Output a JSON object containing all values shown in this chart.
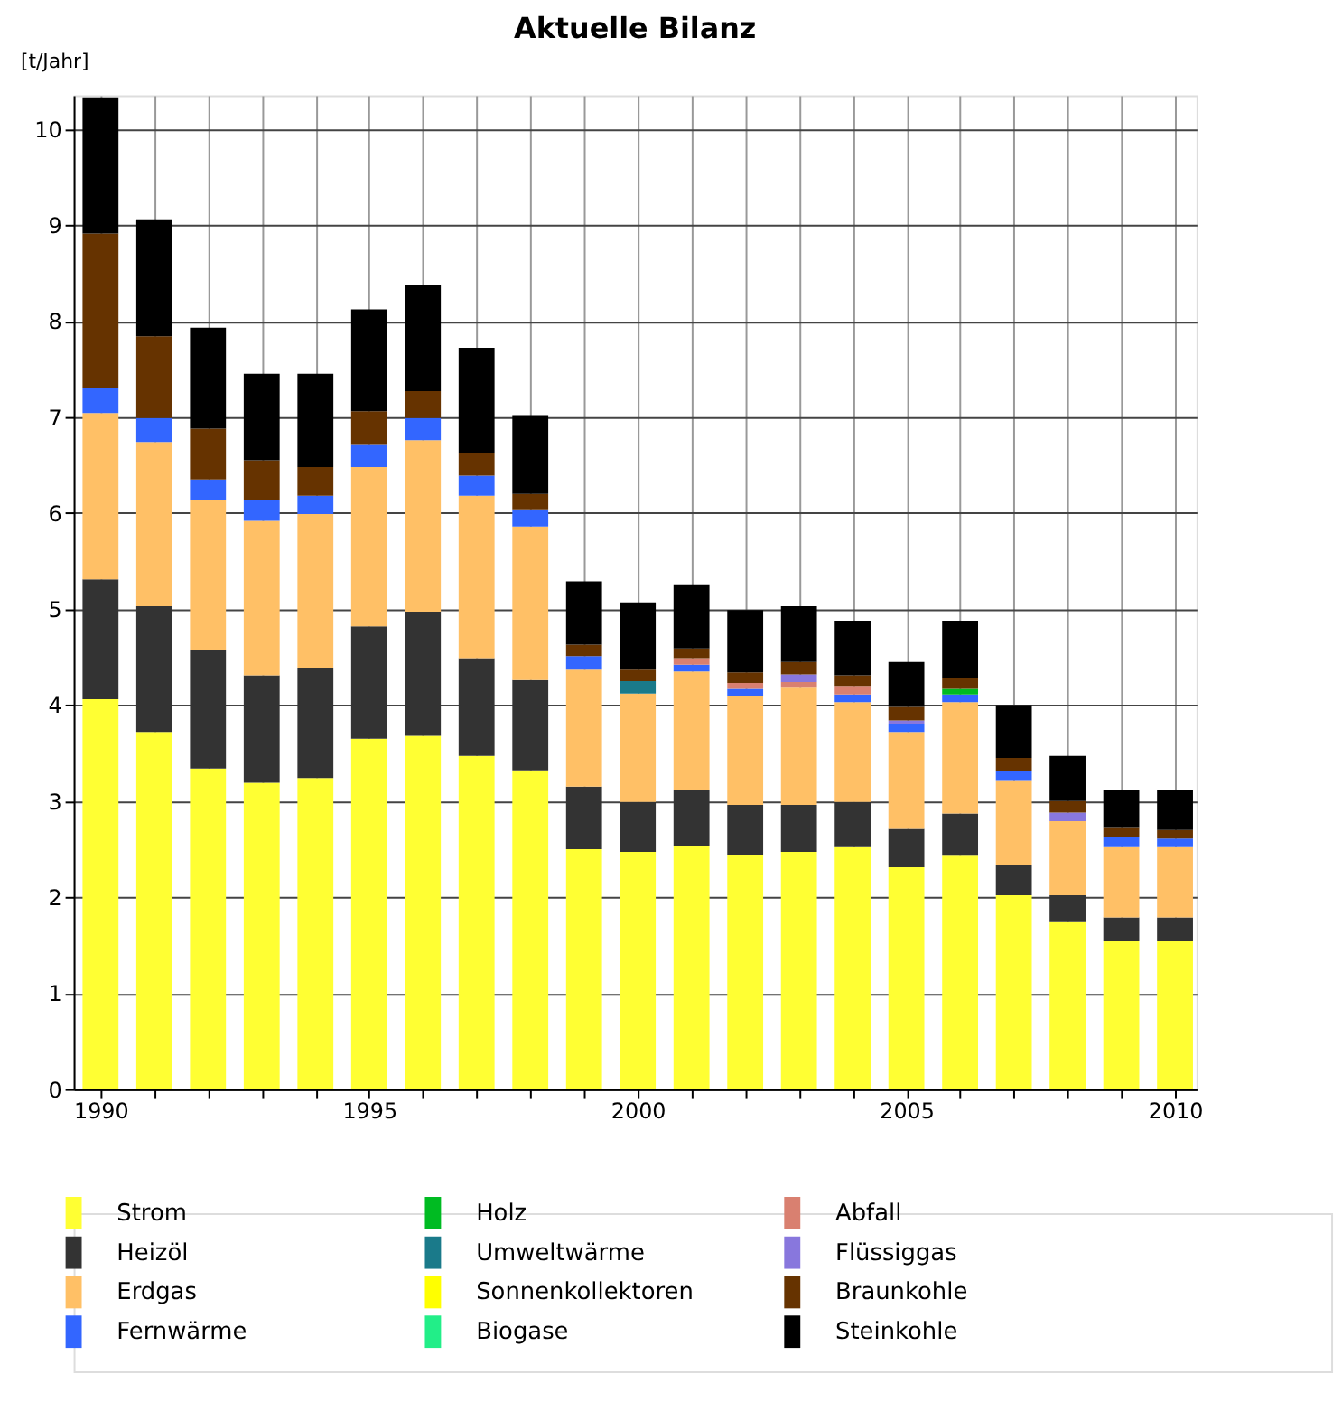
{
  "chart_data": {
    "type": "bar",
    "stacked": true,
    "title": "Aktuelle Bilanz",
    "ylabel": "[t/Jahr]",
    "x": [
      1990,
      1991,
      1992,
      1993,
      1994,
      1995,
      1996,
      1997,
      1998,
      1999,
      2000,
      2001,
      2002,
      2003,
      2004,
      2005,
      2006,
      2007,
      2008,
      2009,
      2010
    ],
    "xlim": [
      1989.5,
      2010.4
    ],
    "xticks": [
      1990,
      {
        "value": 1991,
        "label": null
      },
      {
        "value": 1992,
        "label": null
      },
      {
        "value": 1993,
        "label": null
      },
      {
        "value": 1994,
        "label": null
      },
      1995,
      {
        "value": 1996,
        "label": null
      },
      {
        "value": 1997,
        "label": null
      },
      {
        "value": 1998,
        "label": null
      },
      {
        "value": 1999,
        "label": null
      },
      2000,
      {
        "value": 2001,
        "label": null
      },
      {
        "value": 2002,
        "label": null
      },
      {
        "value": 2003,
        "label": null
      },
      {
        "value": 2004,
        "label": null
      },
      2005,
      {
        "value": 2006,
        "label": null
      },
      {
        "value": 2007,
        "label": null
      },
      {
        "value": 2008,
        "label": null
      },
      {
        "value": 2009,
        "label": null
      },
      2010
    ],
    "ylim": [
      0,
      10.35
    ],
    "yticks": [
      0,
      1,
      2,
      3,
      4,
      5,
      6,
      7,
      8,
      9,
      10
    ],
    "grid": true,
    "legend": "bottom",
    "series": [
      {
        "name": "Strom",
        "color": "#ffff33",
        "values": [
          4.06,
          3.72,
          3.34,
          3.19,
          3.24,
          3.65,
          3.68,
          3.47,
          3.32,
          2.5,
          2.47,
          2.53,
          2.44,
          2.47,
          2.52,
          2.31,
          2.43,
          2.02,
          1.74,
          1.54,
          1.54
        ]
      },
      {
        "name": "Heizöl",
        "color": "#333333",
        "values": [
          1.25,
          1.31,
          1.23,
          1.12,
          1.14,
          1.17,
          1.29,
          1.02,
          0.94,
          0.65,
          0.52,
          0.59,
          0.52,
          0.49,
          0.47,
          0.4,
          0.44,
          0.31,
          0.28,
          0.25,
          0.25
        ]
      },
      {
        "name": "Erdgas",
        "color": "#ffc066",
        "values": [
          1.73,
          1.71,
          1.57,
          1.61,
          1.61,
          1.66,
          1.79,
          1.69,
          1.6,
          1.22,
          1.13,
          1.23,
          1.13,
          1.22,
          1.04,
          1.01,
          1.16,
          0.88,
          0.77,
          0.73,
          0.73
        ]
      },
      {
        "name": "Fernwärme",
        "color": "#3366ff",
        "values": [
          0.26,
          0.25,
          0.21,
          0.21,
          0.19,
          0.23,
          0.23,
          0.21,
          0.17,
          0.14,
          null,
          0.07,
          0.08,
          null,
          0.08,
          0.08,
          0.08,
          0.1,
          null,
          0.11,
          0.09
        ]
      },
      {
        "name": "Holz",
        "color": "#00bb22",
        "values": [
          null,
          null,
          null,
          null,
          null,
          null,
          null,
          null,
          null,
          null,
          null,
          null,
          null,
          null,
          null,
          null,
          0.06,
          null,
          null,
          null,
          null
        ]
      },
      {
        "name": "Umweltwärme",
        "color": "#1a7a8a",
        "values": [
          null,
          null,
          null,
          null,
          null,
          null,
          null,
          null,
          null,
          null,
          0.13,
          null,
          null,
          null,
          null,
          null,
          null,
          null,
          null,
          null,
          null
        ]
      },
      {
        "name": "Sonnenkollektoren",
        "color": "#ffff00",
        "values": [
          null,
          null,
          null,
          null,
          null,
          null,
          null,
          null,
          null,
          null,
          null,
          null,
          null,
          null,
          null,
          null,
          null,
          null,
          null,
          null,
          null
        ]
      },
      {
        "name": "Biogase",
        "color": "#22ee88",
        "values": [
          null,
          null,
          null,
          null,
          null,
          null,
          null,
          null,
          null,
          null,
          null,
          null,
          null,
          null,
          null,
          null,
          null,
          null,
          null,
          null,
          null
        ]
      },
      {
        "name": "Abfall",
        "color": "#d98070",
        "values": [
          null,
          null,
          null,
          null,
          null,
          null,
          null,
          null,
          null,
          null,
          null,
          0.07,
          0.06,
          0.06,
          0.09,
          null,
          null,
          null,
          null,
          null,
          null
        ]
      },
      {
        "name": "Flüssiggas",
        "color": "#8877dd",
        "values": [
          null,
          null,
          null,
          null,
          null,
          null,
          null,
          null,
          null,
          null,
          null,
          null,
          null,
          0.08,
          null,
          0.04,
          null,
          null,
          0.09,
          null,
          null
        ]
      },
      {
        "name": "Braunkohle",
        "color": "#663300",
        "values": [
          1.61,
          0.85,
          0.53,
          0.42,
          0.3,
          0.35,
          0.28,
          0.23,
          0.17,
          0.12,
          0.12,
          0.1,
          0.11,
          0.13,
          0.11,
          0.14,
          0.11,
          0.14,
          0.12,
          0.09,
          0.09
        ]
      },
      {
        "name": "Steinkohle",
        "color": "#000000",
        "values": [
          1.42,
          1.22,
          1.05,
          0.9,
          0.97,
          1.06,
          1.11,
          1.1,
          0.82,
          0.66,
          0.7,
          0.66,
          0.65,
          0.58,
          0.57,
          0.47,
          0.6,
          0.55,
          0.47,
          0.4,
          0.42
        ]
      }
    ]
  }
}
